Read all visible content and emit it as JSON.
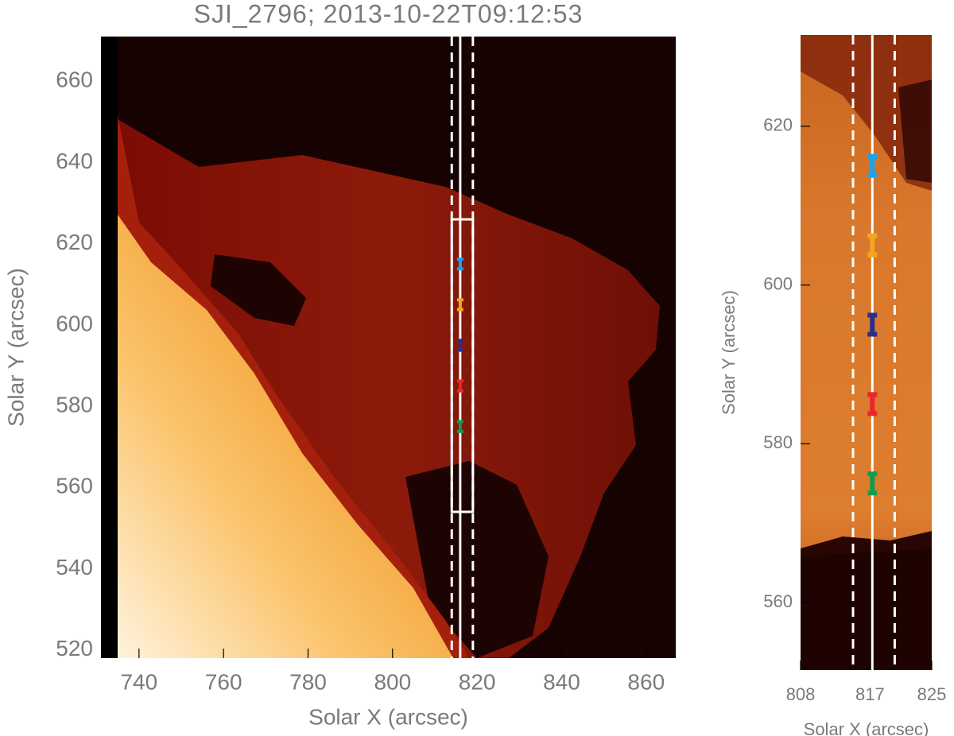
{
  "chart_data": [
    {
      "type": "image",
      "title": "SJI_2796; 2013-10-22T09:12:53",
      "xlabel": "Solar X (arcsec)",
      "ylabel": "Solar Y (arcsec)",
      "xlim": [
        731,
        867
      ],
      "ylim": [
        518,
        671
      ],
      "xticks": [
        740,
        760,
        780,
        800,
        820,
        840,
        860
      ],
      "yticks": [
        520,
        540,
        560,
        580,
        600,
        620,
        640,
        660
      ],
      "slit_x": 816,
      "slit_bounds": [
        814,
        819
      ],
      "box_ylim": [
        554,
        626
      ],
      "x": [
        816,
        816,
        816,
        816,
        816
      ],
      "values": [
        615,
        605,
        595,
        585,
        575
      ],
      "errors": [
        1.2,
        1.2,
        1.2,
        1.2,
        1.2
      ],
      "colors": [
        "#1aa3ea",
        "#f5a51c",
        "#2a2f8c",
        "#e8262b",
        "#169a4c"
      ]
    },
    {
      "type": "image",
      "xlabel": "Solar X (arcsec)",
      "ylabel": "Solar Y (arcsec)",
      "xlim": [
        808,
        825
      ],
      "ylim": [
        551.5,
        631.5
      ],
      "xticks": [
        808,
        817,
        825
      ],
      "yticks": [
        560,
        580,
        600,
        620
      ],
      "slit_x": 817.3,
      "slit_bounds": [
        814.8,
        820.2
      ],
      "x": [
        817.3,
        817.3,
        817.3,
        817.3,
        817.3
      ],
      "values": [
        615,
        605,
        595,
        585,
        575
      ],
      "errors": [
        1.2,
        1.2,
        1.2,
        1.2,
        1.2
      ],
      "colors": [
        "#1aa3ea",
        "#f5a51c",
        "#2a2f8c",
        "#e8262b",
        "#169a4c"
      ]
    }
  ]
}
